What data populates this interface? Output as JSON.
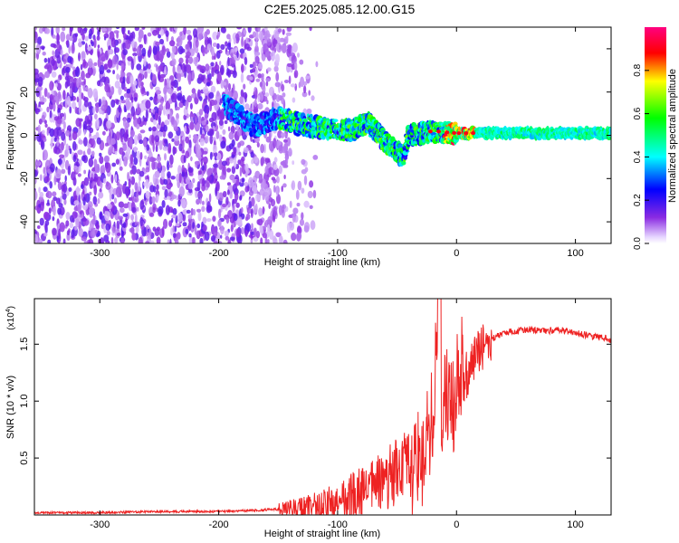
{
  "figure": {
    "title": "C2E5.2025.085.12.00.G15"
  },
  "chart_data": [
    {
      "type": "heatmap",
      "xlabel": "Height of straight line (km)",
      "ylabel": "Frequency (Hz)",
      "xlim": [
        -355,
        130
      ],
      "ylim": [
        -50,
        50
      ],
      "x_ticks": [
        -300,
        -200,
        -100,
        0,
        100
      ],
      "x_tick_labels": [
        "-300",
        "-200",
        "-100",
        "0",
        "100"
      ],
      "y_ticks": [
        -40,
        -20,
        0,
        20,
        40
      ],
      "y_tick_labels": [
        "-40",
        "-20",
        "0",
        "20",
        "40"
      ],
      "colorbar": {
        "label": "Normalized spectral amplitude",
        "range": [
          0,
          1
        ],
        "ticks": [
          0.0,
          0.2,
          0.4,
          0.6,
          0.8
        ],
        "tick_labels": [
          "0.0",
          "0.2",
          "0.4",
          "0.6",
          "0.8"
        ],
        "colormap": [
          "#ffffff",
          "#8a2be2",
          "#0000ff",
          "#00ffff",
          "#00ff00",
          "#ffff00",
          "#ff0000",
          "#ff0080"
        ]
      },
      "signal_track": {
        "description_free_frequency_hz": [
          [
            -190,
            12
          ],
          [
            -180,
            8
          ],
          [
            -170,
            4
          ],
          [
            -150,
            8
          ],
          [
            -130,
            5
          ],
          [
            -110,
            3
          ],
          [
            -90,
            2
          ],
          [
            -75,
            6
          ],
          [
            -60,
            -3
          ],
          [
            -45,
            -10
          ],
          [
            -40,
            0
          ],
          [
            -20,
            2
          ],
          [
            0,
            1
          ],
          [
            20,
            1
          ],
          [
            60,
            1
          ],
          [
            100,
            1
          ],
          [
            130,
            1
          ]
        ]
      },
      "grid": false
    },
    {
      "type": "line",
      "xlabel": "Height of straight line (km)",
      "ylabel": "SNR (10 * v/v)",
      "multiplier_label": "(x10",
      "multiplier_exp": "4",
      "multiplier_close": ")",
      "xlim": [
        -355,
        130
      ],
      "ylim": [
        0,
        1.9
      ],
      "x_ticks": [
        -300,
        -200,
        -100,
        0,
        100
      ],
      "x_tick_labels": [
        "-300",
        "-200",
        "-100",
        "0",
        "100"
      ],
      "y_ticks": [
        0.5,
        1.0,
        1.5
      ],
      "y_tick_labels": [
        "0.5",
        "1.0",
        "1.5"
      ],
      "series_color": "#ee2222",
      "series": [
        {
          "x": [
            -355,
            -300,
            -250,
            -200,
            -170,
            -150,
            -130,
            -110,
            -100,
            -90,
            -80,
            -70,
            -60,
            -50,
            -40,
            -30,
            -25,
            -20,
            -18,
            -16,
            -14,
            -12,
            -10,
            -5,
            0,
            5,
            10,
            15,
            20,
            30,
            40,
            50,
            60,
            70,
            80,
            90,
            100,
            110,
            120,
            130
          ],
          "y": [
            0.02,
            0.02,
            0.03,
            0.03,
            0.04,
            0.05,
            0.06,
            0.08,
            0.1,
            0.14,
            0.2,
            0.26,
            0.3,
            0.36,
            0.45,
            0.6,
            0.75,
            0.9,
            1.3,
            1.8,
            1.2,
            1.05,
            1.0,
            1.1,
            1.18,
            1.26,
            1.3,
            1.38,
            1.45,
            1.55,
            1.6,
            1.62,
            1.63,
            1.62,
            1.62,
            1.62,
            1.6,
            1.58,
            1.56,
            1.54
          ]
        }
      ],
      "grid": false
    }
  ]
}
